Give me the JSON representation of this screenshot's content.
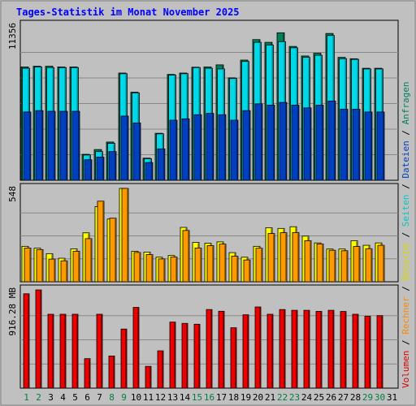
{
  "chart_data": {
    "type": "bar",
    "title": "Tages-Statistik im Monat November 2025",
    "categories": [
      "1",
      "2",
      "3",
      "4",
      "5",
      "6",
      "7",
      "8",
      "9",
      "10",
      "11",
      "12",
      "13",
      "14",
      "15",
      "16",
      "17",
      "18",
      "19",
      "20",
      "21",
      "22",
      "23",
      "24",
      "25",
      "26",
      "27",
      "28",
      "29",
      "30",
      "31"
    ],
    "weekend_days": [
      "1",
      "2",
      "8",
      "9",
      "15",
      "16",
      "22",
      "23",
      "29",
      "30"
    ],
    "right_legend": [
      {
        "text": "Volumen",
        "color": "#dd0000"
      },
      {
        "text": "Rechner",
        "color": "#ff8800"
      },
      {
        "text": "Besuche",
        "color": "#d8d800"
      },
      {
        "text": "Seiten",
        "color": "#00c8c8"
      },
      {
        "text": "Dateien",
        "color": "#0040c0"
      },
      {
        "text": "Anfragen",
        "color": "#008060"
      }
    ],
    "panels": [
      {
        "id": "top",
        "ymax_label": "11356",
        "ymax": 11356,
        "series": [
          {
            "name": "Anfragen",
            "color": "#00805a",
            "values": [
              8300,
              8350,
              8350,
              8300,
              8300,
              1900,
              2250,
              2800,
              7850,
              6450,
              1620,
              3440,
              7750,
              7850,
              8280,
              8300,
              8450,
              7500,
              8800,
              10300,
              10100,
              10800,
              9800,
              9100,
              9300,
              10750,
              9000,
              8900,
              8200,
              8200,
              0
            ]
          },
          {
            "name": "Seiten",
            "color": "#00d8e8",
            "values": [
              8200,
              8300,
              8250,
              8250,
              8250,
              1850,
              2100,
              2700,
              7800,
              6400,
              1580,
              3400,
              7700,
              7800,
              8250,
              8200,
              8150,
              7450,
              8700,
              10100,
              9900,
              10150,
              9700,
              9000,
              9150,
              10600,
              8900,
              8850,
              8150,
              8150,
              0
            ]
          },
          {
            "name": "Dateien",
            "color": "#0040c0",
            "values": [
              5000,
              5100,
              5050,
              5050,
              5050,
              1500,
              1700,
              2100,
              4700,
              4200,
              1300,
              2300,
              4400,
              4500,
              4800,
              4900,
              4800,
              4400,
              5100,
              5600,
              5500,
              5700,
              5500,
              5300,
              5500,
              5800,
              5200,
              5200,
              5000,
              5000,
              0
            ]
          }
        ]
      },
      {
        "id": "middle",
        "ymax_label": "548",
        "ymax": 548,
        "series": [
          {
            "name": "Besuche",
            "color": "#ffff00",
            "values": [
              208,
              197,
              165,
              138,
              193,
              287,
              441,
              368,
              548,
              179,
              174,
              144,
              154,
              319,
              231,
              226,
              234,
              171,
              144,
              208,
              317,
              313,
              323,
              268,
              228,
              192,
              192,
              241,
              214,
              228,
              0
            ]
          },
          {
            "name": "Rechner",
            "color": "#ff9900",
            "values": [
              198,
              189,
              133,
              123,
              179,
              253,
              473,
              373,
              556,
              172,
              160,
              134,
              145,
              301,
              198,
              212,
              221,
              150,
              128,
              197,
              283,
              288,
              289,
              241,
              222,
              185,
              182,
              207,
              194,
              214,
              0
            ]
          }
        ]
      },
      {
        "id": "bottom",
        "ymax_label": "916.28 MB",
        "ymax": 916.28,
        "series": [
          {
            "name": "Volumen",
            "color": "#ee0000",
            "values": [
              880,
              916,
              689,
              689,
              689,
              275,
              689,
              300,
              551,
              753,
              203,
              348,
              616,
              604,
              596,
              733,
              717,
              563,
              684,
              757,
              689,
              733,
              726,
              726,
              716,
              726,
              715,
              689,
              670,
              676,
              0
            ]
          }
        ]
      }
    ],
    "grid": true,
    "legend_placement": "right-vertical"
  }
}
